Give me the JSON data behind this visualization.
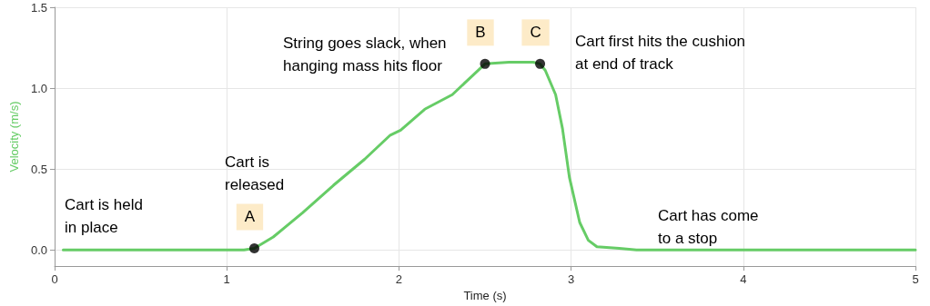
{
  "chart_data": {
    "type": "line",
    "xlabel": "Time (s)",
    "ylabel": "Velocity (m/s)",
    "xlim": [
      0,
      5
    ],
    "xticks": [
      0,
      1,
      2,
      3,
      4,
      5
    ],
    "ylim": [
      -0.1,
      1.5
    ],
    "yticks": [
      {
        "value": 0,
        "label": "0.0"
      },
      {
        "value": 0.5,
        "label": "0.5"
      },
      {
        "value": 1,
        "label": "1.0"
      },
      {
        "value": 1.5,
        "label": "1.5"
      }
    ],
    "grid": true,
    "series": [
      {
        "color": "#66cc66",
        "marker": "none",
        "x": [
          0.05,
          0.3,
          0.6,
          0.9,
          1.1,
          1.16,
          1.27,
          1.44,
          1.62,
          1.8,
          1.95,
          2.01,
          2.15,
          2.31,
          2.43,
          2.5,
          2.64,
          2.78,
          2.82,
          2.85,
          2.91,
          2.95,
          2.99,
          3.05,
          3.1,
          3.15,
          3.28,
          3.38,
          3.7,
          4.0,
          4.5,
          5.0
        ],
        "values": [
          0,
          0,
          0,
          0,
          0,
          0.01,
          0.08,
          0.23,
          0.4,
          0.56,
          0.71,
          0.74,
          0.87,
          0.96,
          1.08,
          1.15,
          1.16,
          1.16,
          1.15,
          1.11,
          0.96,
          0.75,
          0.45,
          0.17,
          0.06,
          0.02,
          0.01,
          0,
          0,
          0,
          0,
          0
        ]
      },
      {
        "type": "scatter",
        "color": "#000000",
        "marker": "circle",
        "x": [
          1.16,
          2.5,
          2.82
        ],
        "values": [
          0.01,
          1.15,
          1.15
        ]
      }
    ],
    "annotations": [
      {
        "text": "A",
        "x": 1.16,
        "y": 0.01
      },
      {
        "text": "B",
        "x": 2.5,
        "y": 1.15
      },
      {
        "text": "C",
        "x": 2.82,
        "y": 1.15
      },
      "Cart is held\nin place",
      "Cart is\nreleased",
      "String goes slack, when\nhanging mass hits floor",
      "Cart first hits the cushion\nat end of track",
      "Cart has come\nto a stop"
    ]
  }
}
